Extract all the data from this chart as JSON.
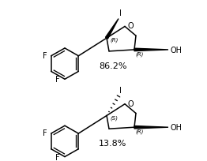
{
  "bg_color": "#ffffff",
  "text_color": "#000000",
  "top_percent": "86.2%",
  "bot_percent": "13.8%",
  "top_stereo_qc": "(R)",
  "top_stereo_c3": "(R)",
  "bot_stereo_qc": "(S)",
  "bot_stereo_c3": "(R)",
  "label_F1": "F",
  "label_F2": "F",
  "label_I": "I",
  "label_O": "O",
  "label_OH": "OH",
  "r_ring": 20,
  "lw": 1.1,
  "fs_label": 7,
  "fs_stereo": 5,
  "fs_pct": 8
}
